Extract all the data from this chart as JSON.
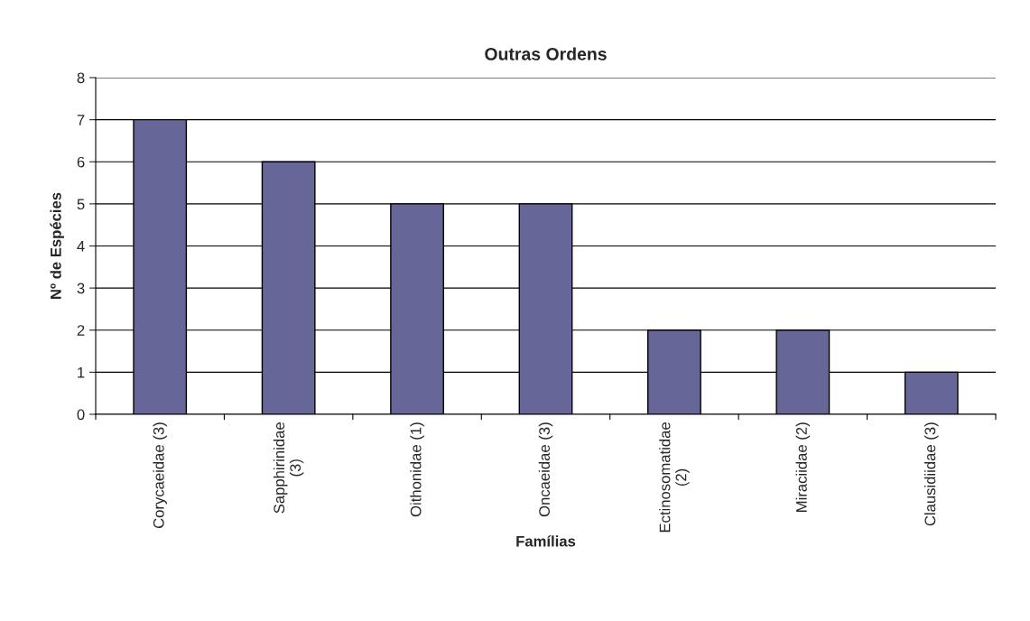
{
  "chart_data": {
    "type": "bar",
    "title": "Outras Ordens",
    "xlabel": "Famílias",
    "ylabel": "Nº de Espécies",
    "categories": [
      "Corycaeidae (3)",
      "Sapphirinidae\n(3)",
      "Oithonidae (1)",
      "Oncaeidae (3)",
      "Ectinosomatidae\n(2)",
      "Miraciidae (2)",
      "Clausidiidae (3)"
    ],
    "values": [
      7,
      6,
      5,
      5,
      2,
      2,
      1
    ],
    "color": "#666699",
    "ylim": [
      0,
      8
    ],
    "yticks": [
      0,
      1,
      2,
      3,
      4,
      5,
      6,
      7,
      8
    ],
    "grid": "y"
  }
}
